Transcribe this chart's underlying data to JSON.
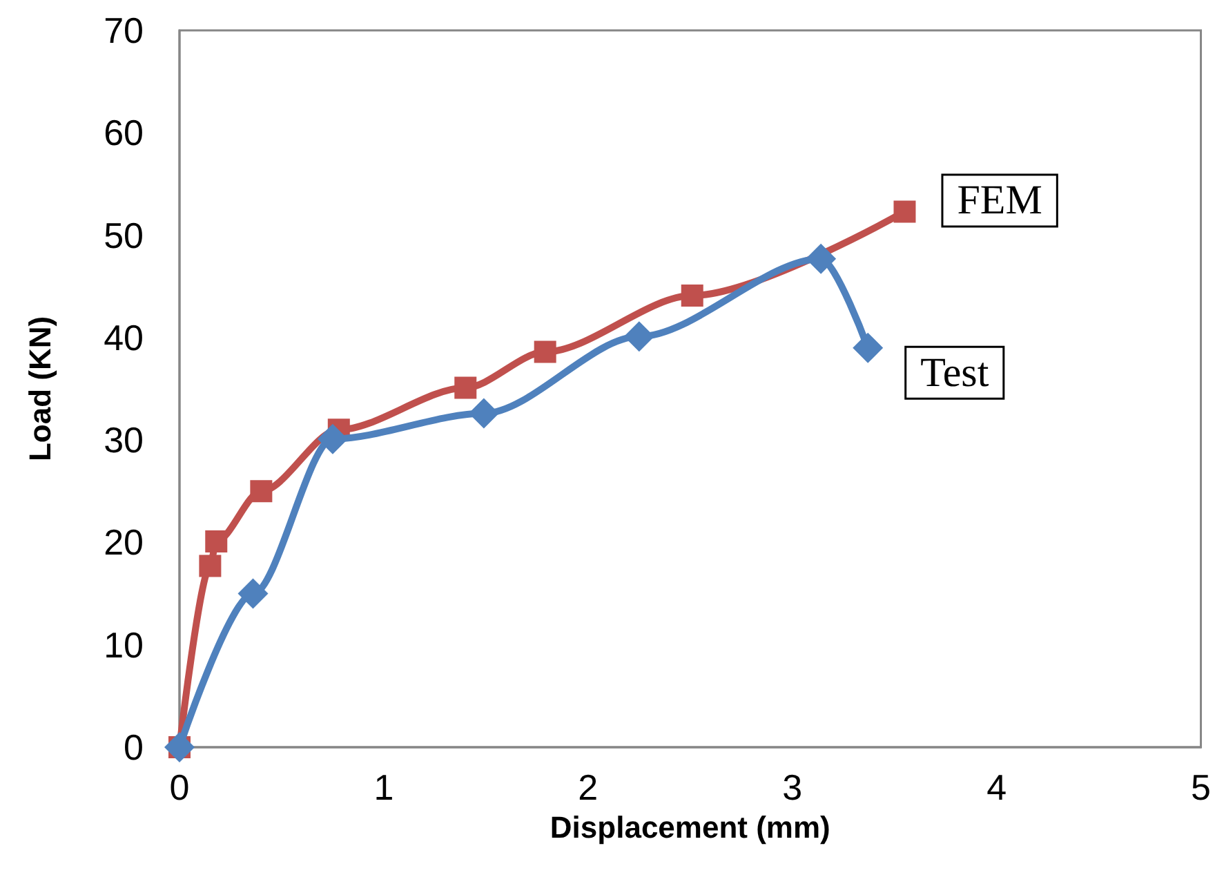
{
  "chart_data": {
    "type": "line",
    "xlabel": "Displacement (mm)",
    "ylabel": "Load (KN)",
    "xlim": [
      0,
      5
    ],
    "xticks": [
      0,
      1,
      2,
      3,
      4,
      5
    ],
    "ylim": [
      0,
      70
    ],
    "yticks": [
      0,
      10,
      20,
      30,
      40,
      50,
      60,
      70
    ],
    "grid": false,
    "legend": false,
    "series": [
      {
        "name": "FEM",
        "color": "#c0504d",
        "marker": "square",
        "x": [
          0,
          0.15,
          0.18,
          0.4,
          0.78,
          1.4,
          1.79,
          2.51,
          3.55
        ],
        "values": [
          0,
          17.7,
          20.1,
          25,
          31,
          35.1,
          38.6,
          44.1,
          52.3
        ]
      },
      {
        "name": "Test",
        "color": "#4f81bd",
        "marker": "diamond",
        "x": [
          0,
          0.36,
          0.75,
          1.49,
          2.25,
          3.14,
          3.37
        ],
        "values": [
          0,
          15,
          30.1,
          32.6,
          40.1,
          47.7,
          39
        ]
      }
    ]
  }
}
